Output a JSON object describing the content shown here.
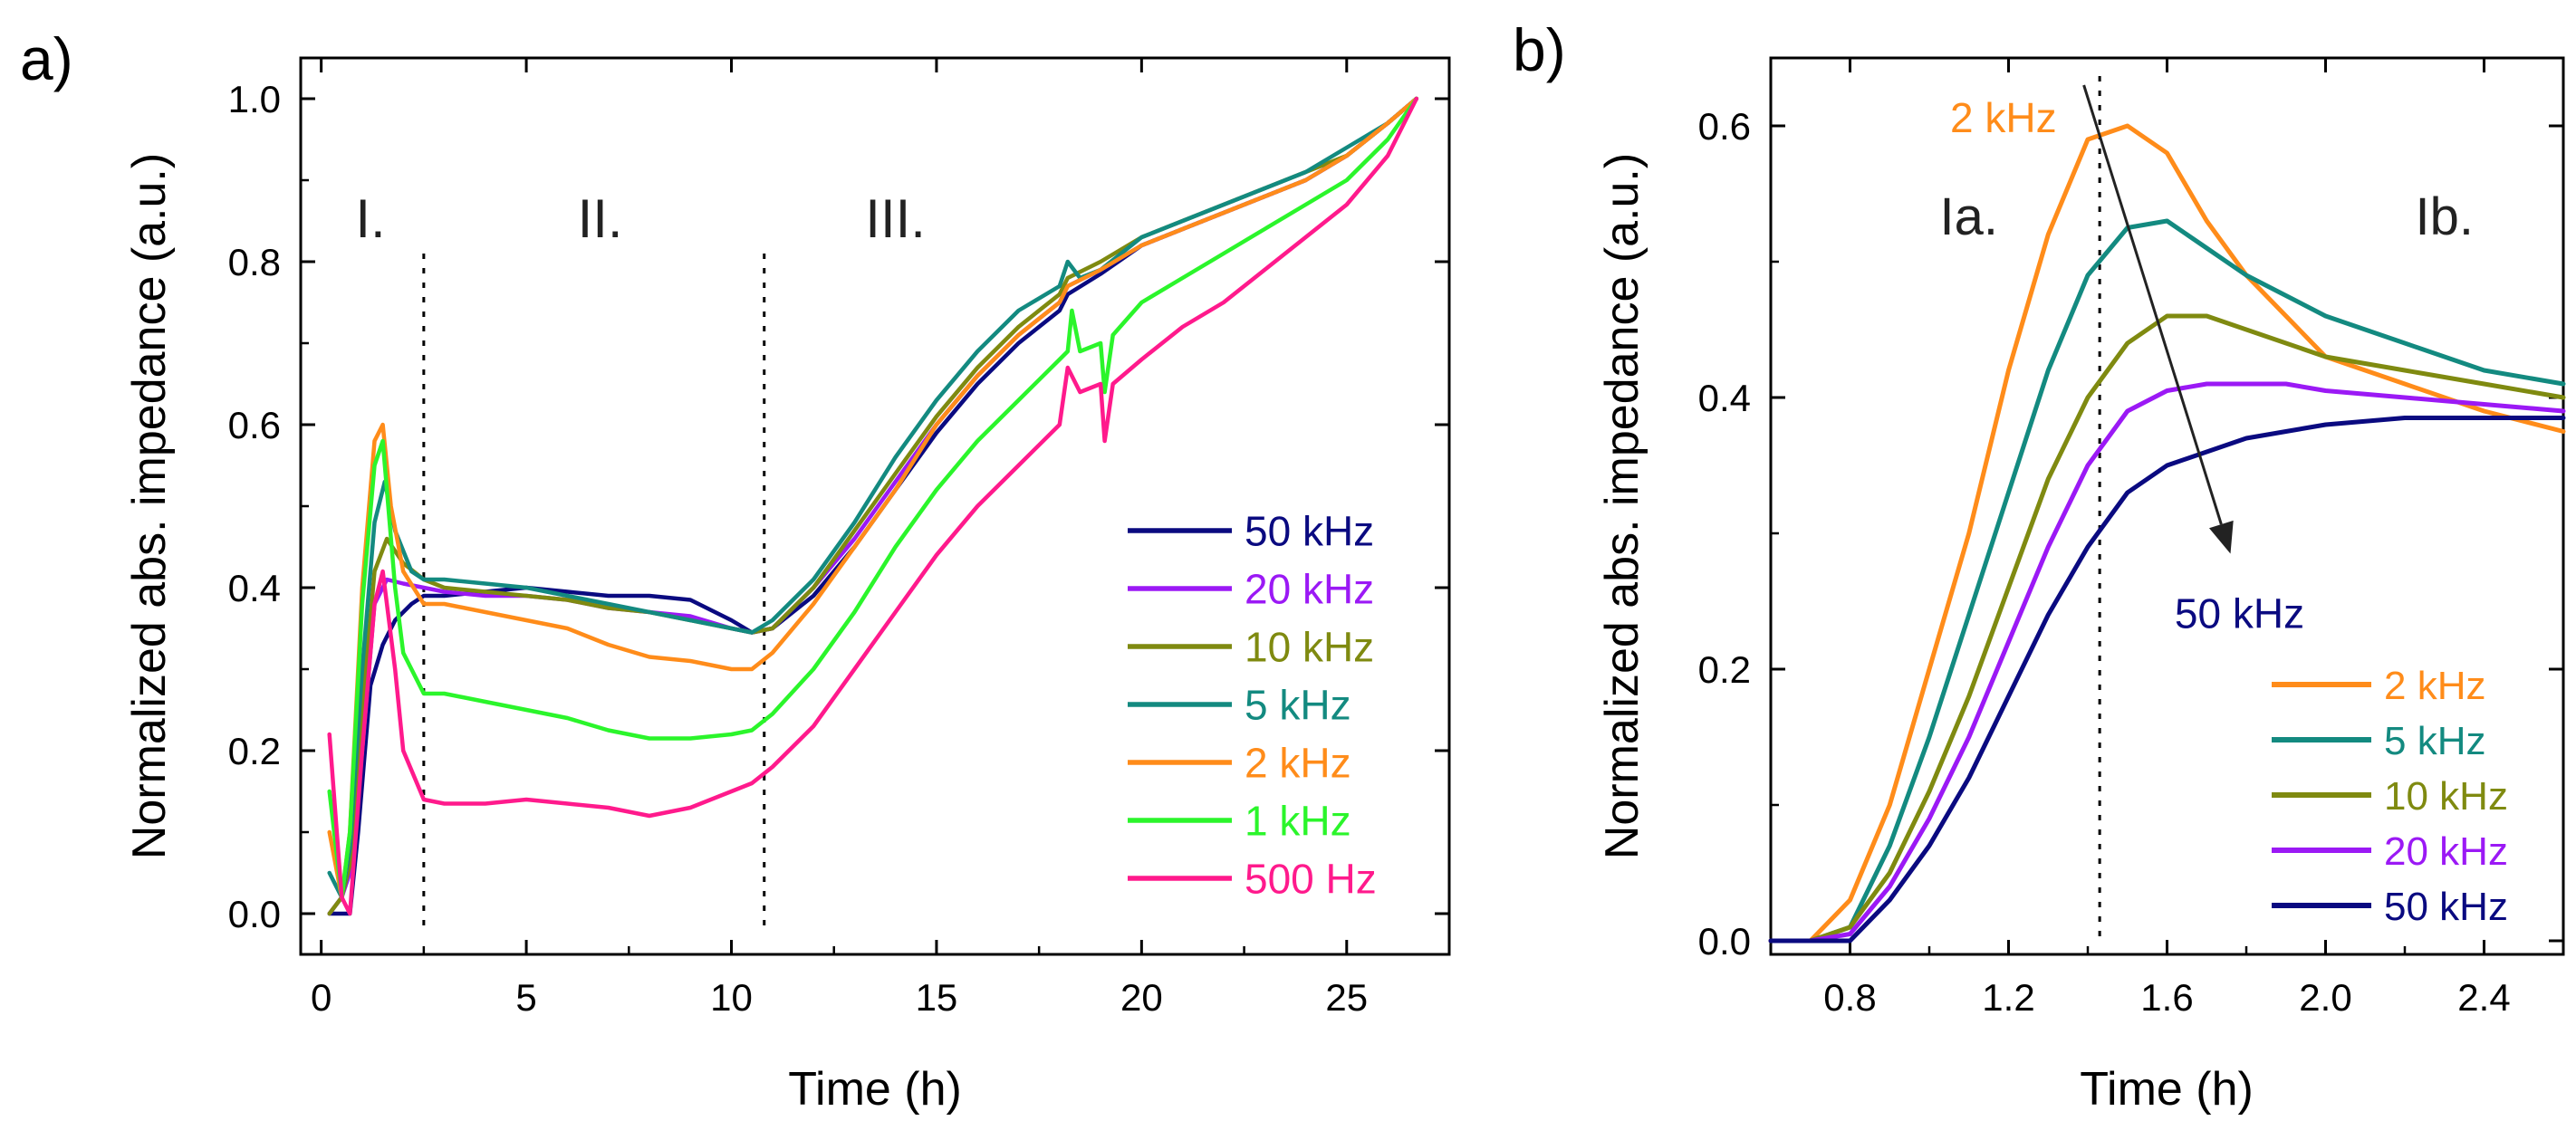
{
  "chart_data": [
    {
      "panel_label": "a)",
      "type": "line",
      "xlabel": "Time (h)",
      "ylabel": "Normalized abs. impedance (a.u.)",
      "xlim": [
        -0.5,
        27.5
      ],
      "ylim": [
        -0.05,
        1.05
      ],
      "xticks": [
        0,
        5,
        10,
        15,
        20,
        25
      ],
      "xtick_labels": [
        "0",
        "5",
        "10",
        "15",
        "20",
        "25"
      ],
      "yticks": [
        0.0,
        0.2,
        0.4,
        0.6,
        0.8,
        1.0
      ],
      "ytick_labels": [
        "0.0",
        "0.2",
        "0.4",
        "0.6",
        "0.8",
        "1.0"
      ],
      "phase_labels": [
        {
          "text": "I.",
          "x": 1.2,
          "y": 0.83
        },
        {
          "text": "II.",
          "x": 6.8,
          "y": 0.83
        },
        {
          "text": "III.",
          "x": 14.0,
          "y": 0.83
        }
      ],
      "dividers_x": [
        2.5,
        10.8
      ],
      "legend_position": "bottom-right",
      "series": [
        {
          "name": "50 kHz",
          "color": "#0a0a80",
          "x": [
            0.2,
            0.5,
            0.7,
            0.9,
            1.2,
            1.5,
            1.8,
            2.2,
            2.5,
            3,
            4,
            5,
            6,
            7,
            8,
            9,
            10,
            10.5,
            11,
            12,
            13,
            14,
            15,
            16,
            17,
            18,
            18.2,
            19,
            20,
            21,
            22,
            23,
            24,
            25,
            26,
            26.7
          ],
          "y": [
            0.0,
            0.0,
            0.0,
            0.1,
            0.28,
            0.33,
            0.36,
            0.38,
            0.39,
            0.39,
            0.395,
            0.4,
            0.395,
            0.39,
            0.39,
            0.385,
            0.36,
            0.345,
            0.35,
            0.39,
            0.45,
            0.52,
            0.59,
            0.65,
            0.7,
            0.74,
            0.76,
            0.785,
            0.82,
            0.84,
            0.86,
            0.88,
            0.9,
            0.93,
            0.97,
            1.0
          ]
        },
        {
          "name": "20 kHz",
          "color": "#9b19f5",
          "x": [
            0.2,
            0.5,
            0.7,
            1.0,
            1.3,
            1.6,
            2.0,
            2.5,
            3,
            4,
            5,
            6,
            7,
            8,
            9,
            10,
            10.5,
            11,
            12,
            13,
            14,
            15,
            16,
            17,
            18,
            18.2,
            19,
            20,
            21,
            22,
            23,
            24,
            25,
            26,
            26.7
          ],
          "y": [
            0.0,
            0.02,
            0.05,
            0.2,
            0.38,
            0.41,
            0.405,
            0.4,
            0.395,
            0.39,
            0.39,
            0.385,
            0.375,
            0.37,
            0.365,
            0.35,
            0.345,
            0.35,
            0.4,
            0.46,
            0.53,
            0.6,
            0.66,
            0.71,
            0.75,
            0.77,
            0.79,
            0.82,
            0.84,
            0.86,
            0.88,
            0.9,
            0.93,
            0.97,
            1.0
          ]
        },
        {
          "name": "10 kHz",
          "color": "#7f8a10",
          "x": [
            0.2,
            0.5,
            0.7,
            1.0,
            1.3,
            1.6,
            2.0,
            2.5,
            3,
            4,
            5,
            6,
            7,
            8,
            9,
            10,
            10.5,
            11,
            12,
            13,
            14,
            15,
            16,
            17,
            18,
            18.2,
            19,
            20,
            21,
            22,
            23,
            24,
            25,
            26,
            26.7
          ],
          "y": [
            0.0,
            0.02,
            0.06,
            0.25,
            0.42,
            0.46,
            0.43,
            0.41,
            0.4,
            0.395,
            0.39,
            0.385,
            0.375,
            0.37,
            0.36,
            0.35,
            0.345,
            0.35,
            0.4,
            0.47,
            0.54,
            0.61,
            0.67,
            0.72,
            0.76,
            0.78,
            0.8,
            0.83,
            0.85,
            0.87,
            0.89,
            0.91,
            0.93,
            0.97,
            1.0
          ]
        },
        {
          "name": "5 kHz",
          "color": "#138a80",
          "x": [
            0.2,
            0.5,
            0.7,
            1.0,
            1.3,
            1.55,
            1.8,
            2.2,
            2.5,
            3,
            4,
            5,
            6,
            7,
            8,
            9,
            10,
            10.5,
            11,
            12,
            13,
            14,
            15,
            16,
            17,
            18,
            18.2,
            18.5,
            19,
            20,
            21,
            22,
            23,
            24,
            25,
            26,
            26.7
          ],
          "y": [
            0.05,
            0.02,
            0.08,
            0.3,
            0.48,
            0.53,
            0.47,
            0.42,
            0.41,
            0.41,
            0.405,
            0.4,
            0.39,
            0.38,
            0.37,
            0.36,
            0.35,
            0.345,
            0.36,
            0.41,
            0.48,
            0.56,
            0.63,
            0.69,
            0.74,
            0.77,
            0.8,
            0.78,
            0.79,
            0.83,
            0.85,
            0.87,
            0.89,
            0.91,
            0.94,
            0.97,
            1.0
          ]
        },
        {
          "name": "2 kHz",
          "color": "#ff8c1a",
          "x": [
            0.2,
            0.5,
            0.7,
            1.0,
            1.3,
            1.5,
            1.7,
            2.0,
            2.5,
            3,
            4,
            5,
            6,
            7,
            8,
            9,
            10,
            10.5,
            11,
            12,
            13,
            14,
            15,
            16,
            17,
            18,
            18.2,
            19,
            20,
            21,
            22,
            23,
            24,
            25,
            26,
            26.7
          ],
          "y": [
            0.1,
            0.02,
            0.1,
            0.4,
            0.58,
            0.6,
            0.5,
            0.42,
            0.38,
            0.38,
            0.37,
            0.36,
            0.35,
            0.33,
            0.315,
            0.31,
            0.3,
            0.3,
            0.32,
            0.38,
            0.45,
            0.52,
            0.6,
            0.66,
            0.71,
            0.75,
            0.77,
            0.79,
            0.82,
            0.84,
            0.86,
            0.88,
            0.9,
            0.93,
            0.97,
            1.0
          ]
        },
        {
          "name": "1 kHz",
          "color": "#2bf52b",
          "x": [
            0.2,
            0.5,
            0.7,
            1.0,
            1.3,
            1.5,
            1.8,
            2.0,
            2.5,
            3,
            4,
            5,
            6,
            7,
            8,
            9,
            10,
            10.5,
            11,
            12,
            13,
            14,
            15,
            16,
            17,
            18,
            18.2,
            18.3,
            18.5,
            19,
            19.1,
            19.3,
            20,
            21,
            22,
            23,
            24,
            25,
            26,
            26.7
          ],
          "y": [
            0.15,
            0.02,
            0.1,
            0.38,
            0.55,
            0.58,
            0.4,
            0.32,
            0.27,
            0.27,
            0.26,
            0.25,
            0.24,
            0.225,
            0.215,
            0.215,
            0.22,
            0.225,
            0.245,
            0.3,
            0.37,
            0.45,
            0.52,
            0.58,
            0.63,
            0.68,
            0.69,
            0.74,
            0.69,
            0.7,
            0.64,
            0.71,
            0.75,
            0.78,
            0.81,
            0.84,
            0.87,
            0.9,
            0.95,
            1.0
          ]
        },
        {
          "name": "500 Hz",
          "color": "#ff1a8c",
          "x": [
            0.2,
            0.5,
            0.7,
            1.0,
            1.3,
            1.5,
            1.8,
            2.0,
            2.5,
            3,
            4,
            5,
            6,
            7,
            8,
            9,
            10,
            10.5,
            11,
            12,
            13,
            14,
            15,
            16,
            17,
            18,
            18.2,
            18.5,
            19,
            19.1,
            19.3,
            20,
            21,
            22,
            23,
            24,
            25,
            26,
            26.7
          ],
          "y": [
            0.22,
            0.02,
            0.0,
            0.2,
            0.38,
            0.42,
            0.3,
            0.2,
            0.14,
            0.135,
            0.135,
            0.14,
            0.135,
            0.13,
            0.12,
            0.13,
            0.15,
            0.16,
            0.18,
            0.23,
            0.3,
            0.37,
            0.44,
            0.5,
            0.55,
            0.6,
            0.67,
            0.64,
            0.65,
            0.58,
            0.65,
            0.68,
            0.72,
            0.75,
            0.79,
            0.83,
            0.87,
            0.93,
            1.0
          ]
        }
      ]
    },
    {
      "panel_label": "b)",
      "type": "line",
      "xlabel": "Time (h)",
      "ylabel": "Normalized abs. impedance (a.u.)",
      "xlim": [
        0.6,
        2.6
      ],
      "ylim": [
        -0.01,
        0.65
      ],
      "xticks": [
        0.8,
        1.2,
        1.6,
        2.0,
        2.4
      ],
      "xtick_labels": [
        "0.8",
        "1.2",
        "1.6",
        "2.0",
        "2.4"
      ],
      "yticks": [
        0.0,
        0.2,
        0.4,
        0.6
      ],
      "ytick_labels": [
        "0.0",
        "0.2",
        "0.4",
        "0.6"
      ],
      "region_labels": [
        {
          "text": "Ia.",
          "x": 1.1,
          "y": 0.52
        },
        {
          "text": "Ib.",
          "x": 2.3,
          "y": 0.52
        }
      ],
      "divider_x": 1.43,
      "arrow": {
        "from": [
          1.39,
          0.63
        ],
        "to": [
          1.76,
          0.285
        ],
        "start_label": "2 kHz",
        "end_label": "50 kHz"
      },
      "legend_position": "bottom-right",
      "series": [
        {
          "name": "2 kHz",
          "color": "#ff8c1a",
          "x": [
            0.6,
            0.7,
            0.8,
            0.9,
            1.0,
            1.1,
            1.2,
            1.3,
            1.4,
            1.5,
            1.6,
            1.7,
            1.8,
            1.9,
            2.0,
            2.2,
            2.4,
            2.6
          ],
          "y": [
            0.0,
            0.0,
            0.03,
            0.1,
            0.2,
            0.3,
            0.42,
            0.52,
            0.59,
            0.6,
            0.58,
            0.53,
            0.49,
            0.46,
            0.43,
            0.41,
            0.39,
            0.375
          ]
        },
        {
          "name": "5 kHz",
          "color": "#138a80",
          "x": [
            0.6,
            0.7,
            0.8,
            0.9,
            1.0,
            1.1,
            1.2,
            1.3,
            1.4,
            1.5,
            1.6,
            1.7,
            1.8,
            1.9,
            2.0,
            2.2,
            2.4,
            2.6
          ],
          "y": [
            0.0,
            0.0,
            0.01,
            0.07,
            0.15,
            0.24,
            0.33,
            0.42,
            0.49,
            0.525,
            0.53,
            0.51,
            0.49,
            0.475,
            0.46,
            0.44,
            0.42,
            0.41
          ]
        },
        {
          "name": "10 kHz",
          "color": "#7f8a10",
          "x": [
            0.6,
            0.7,
            0.8,
            0.9,
            1.0,
            1.1,
            1.2,
            1.3,
            1.4,
            1.5,
            1.6,
            1.7,
            1.8,
            1.9,
            2.0,
            2.2,
            2.4,
            2.6
          ],
          "y": [
            0.0,
            0.0,
            0.01,
            0.05,
            0.11,
            0.18,
            0.26,
            0.34,
            0.4,
            0.44,
            0.46,
            0.46,
            0.45,
            0.44,
            0.43,
            0.42,
            0.41,
            0.4
          ]
        },
        {
          "name": "20 kHz",
          "color": "#9b19f5",
          "x": [
            0.6,
            0.7,
            0.8,
            0.9,
            1.0,
            1.1,
            1.2,
            1.3,
            1.4,
            1.5,
            1.6,
            1.7,
            1.8,
            1.9,
            2.0,
            2.2,
            2.4,
            2.6
          ],
          "y": [
            0.0,
            0.0,
            0.005,
            0.04,
            0.09,
            0.15,
            0.22,
            0.29,
            0.35,
            0.39,
            0.405,
            0.41,
            0.41,
            0.41,
            0.405,
            0.4,
            0.395,
            0.39
          ]
        },
        {
          "name": "50 kHz",
          "color": "#0a0a80",
          "x": [
            0.6,
            0.7,
            0.8,
            0.9,
            1.0,
            1.1,
            1.2,
            1.3,
            1.4,
            1.5,
            1.6,
            1.7,
            1.8,
            1.9,
            2.0,
            2.2,
            2.4,
            2.6
          ],
          "y": [
            0.0,
            0.0,
            0.0,
            0.03,
            0.07,
            0.12,
            0.18,
            0.24,
            0.29,
            0.33,
            0.35,
            0.36,
            0.37,
            0.375,
            0.38,
            0.385,
            0.385,
            0.385
          ]
        }
      ]
    }
  ]
}
